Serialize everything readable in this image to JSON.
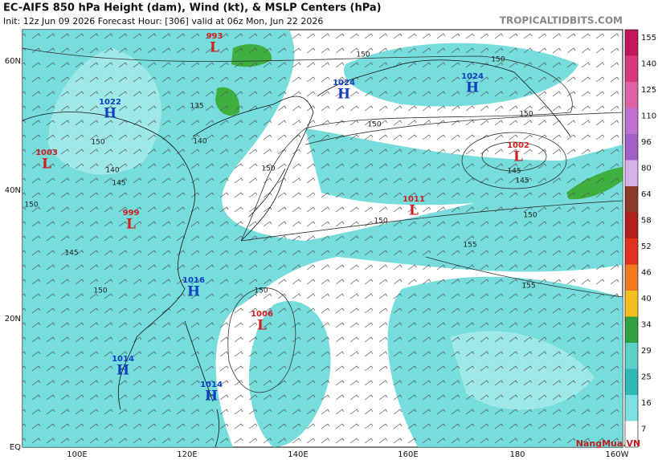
{
  "header": {
    "title": "EC-AIFS 850 hPa Height (dam), Wind (kt), & MSLP Centers (hPa)",
    "subtitle": "Init: 12z Jun 09 2026   Forecast Hour: [306]   valid at 06z Mon, Jun 22 2026",
    "site": "TROPICALTIDBITS.COM"
  },
  "map": {
    "lat_labels": [
      "60N",
      "40N",
      "20N",
      "EQ"
    ],
    "lon_labels": [
      "100E",
      "120E",
      "140E",
      "160E",
      "180",
      "160W"
    ],
    "centers": [
      {
        "letter": "L",
        "value": "993"
      },
      {
        "letter": "H",
        "value": "1024"
      },
      {
        "letter": "H",
        "value": "1024"
      },
      {
        "letter": "H",
        "value": "1022"
      },
      {
        "letter": "L",
        "value": "1003"
      },
      {
        "letter": "L",
        "value": "1002"
      },
      {
        "letter": "L",
        "value": "1011"
      },
      {
        "letter": "L",
        "value": "999"
      },
      {
        "letter": "H",
        "value": "1016"
      },
      {
        "letter": "L",
        "value": "1006"
      },
      {
        "letter": "H",
        "value": "1014"
      },
      {
        "letter": "H",
        "value": "1014"
      }
    ],
    "contour_labels": [
      "150",
      "150",
      "135",
      "150",
      "140",
      "150",
      "145",
      "150",
      "150",
      "150",
      "145",
      "145",
      "150",
      "150",
      "155",
      "155",
      "150",
      "150",
      "140",
      "145"
    ]
  },
  "colorbar": {
    "labels": [
      "155",
      "140",
      "125",
      "110",
      "96",
      "80",
      "64",
      "58",
      "52",
      "46",
      "40",
      "34",
      "29",
      "25",
      "16",
      "7"
    ],
    "colors": [
      "#c0185a",
      "#d63a7c",
      "#e060a8",
      "#c070d0",
      "#a060c8",
      "#d8b0e8",
      "#8b3a2a",
      "#b02020",
      "#e03020",
      "#f07820",
      "#f0c020",
      "#30a040",
      "#5ad0c8",
      "#30b8b8",
      "#7ce0e0",
      "#ffffff"
    ]
  },
  "watermark": "NangMua.VN"
}
